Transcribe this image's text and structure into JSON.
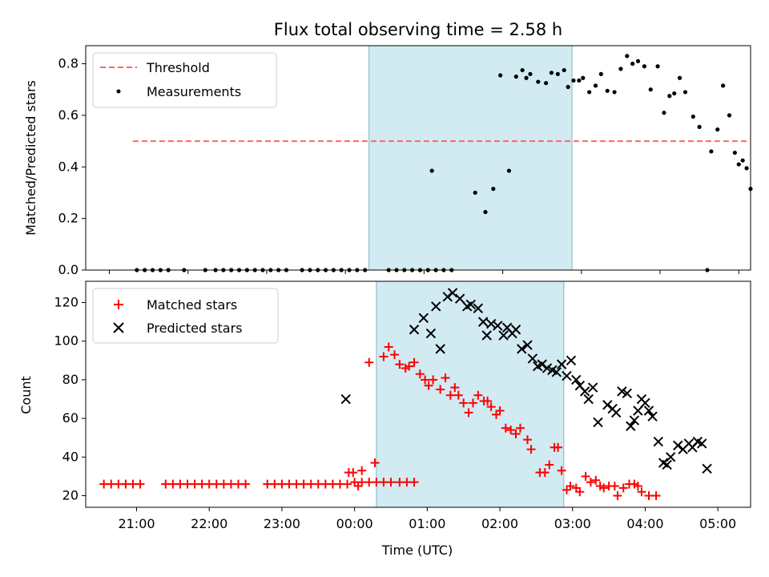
{
  "chart_data": [
    {
      "type": "scatter",
      "title": "Flux total observing time = 2.58 h",
      "ylabel": "Matched/Predicted stars",
      "xlabel": "",
      "xlim": [
        -3.3,
        5.15
      ],
      "ylim": [
        0,
        0.87
      ],
      "yticks": [
        0.0,
        0.2,
        0.4,
        0.6,
        0.8
      ],
      "ytick_labels": [
        "0.0",
        "0.2",
        "0.4",
        "0.6",
        "0.8"
      ],
      "xticks": [
        -3,
        -2,
        -1,
        0,
        1,
        2,
        3,
        4,
        5
      ],
      "xtick_labels": [],
      "highlight": {
        "start": 0.3,
        "end": 2.88,
        "color": "#add8e6"
      },
      "legend": {
        "position": "top-left",
        "entries": [
          "Threshold",
          "Measurements"
        ]
      },
      "threshold": {
        "name": "Threshold",
        "value": 0.5,
        "x_start": -2.7,
        "x_end": 5.1,
        "color": "#ff6666"
      },
      "series": [
        {
          "name": "Measurements",
          "marker": "dot",
          "color": "#000000",
          "points": [
            [
              -2.65,
              0
            ],
            [
              -2.55,
              0
            ],
            [
              -2.45,
              0
            ],
            [
              -2.35,
              0
            ],
            [
              -2.25,
              0
            ],
            [
              -2.05,
              0
            ],
            [
              -1.78,
              0
            ],
            [
              -1.65,
              0
            ],
            [
              -1.55,
              0
            ],
            [
              -1.45,
              0
            ],
            [
              -1.35,
              0
            ],
            [
              -1.25,
              0
            ],
            [
              -1.15,
              0
            ],
            [
              -1.05,
              0
            ],
            [
              -0.95,
              0
            ],
            [
              -0.85,
              0
            ],
            [
              -0.75,
              0
            ],
            [
              -0.55,
              0
            ],
            [
              -0.45,
              0
            ],
            [
              -0.35,
              0
            ],
            [
              -0.25,
              0
            ],
            [
              -0.15,
              0
            ],
            [
              -0.05,
              0
            ],
            [
              0.05,
              0
            ],
            [
              0.15,
              0
            ],
            [
              0.25,
              0
            ],
            [
              0.55,
              0
            ],
            [
              0.65,
              0
            ],
            [
              0.75,
              0
            ],
            [
              0.85,
              0
            ],
            [
              0.95,
              0
            ],
            [
              1.05,
              0
            ],
            [
              1.15,
              0
            ],
            [
              1.25,
              0
            ],
            [
              1.35,
              0
            ],
            [
              1.1,
              0.385
            ],
            [
              1.65,
              0.3
            ],
            [
              1.78,
              0.225
            ],
            [
              1.88,
              0.315
            ],
            [
              1.97,
              0.755
            ],
            [
              2.08,
              0.385
            ],
            [
              2.17,
              0.75
            ],
            [
              2.25,
              0.775
            ],
            [
              2.3,
              0.745
            ],
            [
              2.35,
              0.76
            ],
            [
              2.45,
              0.73
            ],
            [
              2.55,
              0.725
            ],
            [
              2.62,
              0.765
            ],
            [
              2.7,
              0.76
            ],
            [
              2.78,
              0.775
            ],
            [
              2.83,
              0.71
            ],
            [
              2.9,
              0.735
            ],
            [
              2.97,
              0.735
            ],
            [
              3.02,
              0.745
            ],
            [
              3.1,
              0.69
            ],
            [
              3.18,
              0.715
            ],
            [
              3.25,
              0.76
            ],
            [
              3.33,
              0.695
            ],
            [
              3.42,
              0.69
            ],
            [
              3.5,
              0.78
            ],
            [
              3.58,
              0.83
            ],
            [
              3.65,
              0.8
            ],
            [
              3.72,
              0.81
            ],
            [
              3.8,
              0.79
            ],
            [
              3.88,
              0.7
            ],
            [
              3.97,
              0.79
            ],
            [
              4.05,
              0.61
            ],
            [
              4.12,
              0.675
            ],
            [
              4.18,
              0.685
            ],
            [
              4.25,
              0.745
            ],
            [
              4.32,
              0.69
            ],
            [
              4.42,
              0.595
            ],
            [
              4.5,
              0.555
            ],
            [
              4.6,
              0.0
            ],
            [
              4.65,
              0.46
            ],
            [
              4.73,
              0.545
            ],
            [
              4.8,
              0.715
            ],
            [
              4.88,
              0.6
            ],
            [
              4.95,
              0.455
            ],
            [
              5.0,
              0.41
            ],
            [
              5.05,
              0.425
            ],
            [
              5.1,
              0.395
            ],
            [
              5.15,
              0.315
            ]
          ]
        }
      ]
    },
    {
      "type": "scatter",
      "title": "",
      "xlabel": "Time (UTC)",
      "ylabel": "Count",
      "xlim": [
        -3.7,
        5.45
      ],
      "ylim": [
        14,
        131
      ],
      "yticks": [
        20,
        40,
        60,
        80,
        100,
        120
      ],
      "ytick_labels": [
        "20",
        "40",
        "60",
        "80",
        "100",
        "120"
      ],
      "xticks": [
        -3,
        -2,
        -1,
        0,
        1,
        2,
        3,
        4,
        5
      ],
      "xtick_labels": [
        "21:00",
        "22:00",
        "23:00",
        "00:00",
        "01:00",
        "02:00",
        "03:00",
        "04:00",
        "05:00"
      ],
      "highlight": {
        "start": 0.3,
        "end": 2.88,
        "color": "#add8e6"
      },
      "legend": {
        "position": "top-left",
        "entries": [
          "Matched stars",
          "Predicted stars"
        ]
      },
      "series": [
        {
          "name": "Matched stars",
          "marker": "plus",
          "color": "#ff0000",
          "points": [
            [
              -3.45,
              26
            ],
            [
              -3.35,
              26
            ],
            [
              -3.25,
              26
            ],
            [
              -3.15,
              26
            ],
            [
              -3.05,
              26
            ],
            [
              -2.95,
              26
            ],
            [
              -2.6,
              26
            ],
            [
              -2.5,
              26
            ],
            [
              -2.4,
              26
            ],
            [
              -2.3,
              26
            ],
            [
              -2.2,
              26
            ],
            [
              -2.1,
              26
            ],
            [
              -2.0,
              26
            ],
            [
              -1.9,
              26
            ],
            [
              -1.8,
              26
            ],
            [
              -1.7,
              26
            ],
            [
              -1.6,
              26
            ],
            [
              -1.5,
              26
            ],
            [
              -1.2,
              26
            ],
            [
              -1.1,
              26
            ],
            [
              -1.0,
              26
            ],
            [
              -0.9,
              26
            ],
            [
              -0.8,
              26
            ],
            [
              -0.7,
              26
            ],
            [
              -0.6,
              26
            ],
            [
              -0.5,
              26
            ],
            [
              -0.4,
              26
            ],
            [
              -0.3,
              26
            ],
            [
              -0.2,
              26
            ],
            [
              -0.1,
              26
            ],
            [
              0.0,
              27
            ],
            [
              0.1,
              27
            ],
            [
              0.2,
              27
            ],
            [
              0.3,
              27
            ],
            [
              0.4,
              27
            ],
            [
              0.5,
              27
            ],
            [
              0.62,
              27
            ],
            [
              0.72,
              27
            ],
            [
              0.82,
              27
            ],
            [
              -0.08,
              32
            ],
            [
              -0.02,
              32
            ],
            [
              0.05,
              25
            ],
            [
              0.1,
              33
            ],
            [
              0.2,
              89
            ],
            [
              0.28,
              37
            ],
            [
              0.4,
              92
            ],
            [
              0.47,
              97
            ],
            [
              0.55,
              93
            ],
            [
              0.62,
              88
            ],
            [
              0.7,
              86
            ],
            [
              0.75,
              87
            ],
            [
              0.82,
              89
            ],
            [
              0.9,
              83
            ],
            [
              0.97,
              80
            ],
            [
              1.02,
              77
            ],
            [
              1.08,
              80
            ],
            [
              1.18,
              75
            ],
            [
              1.25,
              81
            ],
            [
              1.32,
              72
            ],
            [
              1.38,
              76
            ],
            [
              1.43,
              72
            ],
            [
              1.5,
              68
            ],
            [
              1.57,
              63
            ],
            [
              1.63,
              68
            ],
            [
              1.7,
              72
            ],
            [
              1.78,
              69
            ],
            [
              1.83,
              69
            ],
            [
              1.88,
              66
            ],
            [
              1.95,
              62
            ],
            [
              2.0,
              64
            ],
            [
              2.08,
              55
            ],
            [
              2.15,
              54
            ],
            [
              2.22,
              52
            ],
            [
              2.28,
              55
            ],
            [
              2.38,
              49
            ],
            [
              2.43,
              44
            ],
            [
              2.55,
              32
            ],
            [
              2.62,
              32
            ],
            [
              2.68,
              36
            ],
            [
              2.75,
              45
            ],
            [
              2.8,
              45
            ],
            [
              2.85,
              33
            ],
            [
              2.92,
              23
            ],
            [
              2.97,
              25
            ],
            [
              3.05,
              24
            ],
            [
              3.1,
              22
            ],
            [
              3.18,
              30
            ],
            [
              3.25,
              27
            ],
            [
              3.32,
              28
            ],
            [
              3.38,
              25
            ],
            [
              3.43,
              24
            ],
            [
              3.5,
              25
            ],
            [
              3.58,
              25
            ],
            [
              3.62,
              20
            ],
            [
              3.7,
              24
            ],
            [
              3.78,
              26
            ],
            [
              3.85,
              26
            ],
            [
              3.9,
              25
            ],
            [
              3.95,
              22
            ],
            [
              4.05,
              20
            ],
            [
              4.15,
              20
            ]
          ]
        },
        {
          "name": "Predicted stars",
          "marker": "x",
          "color": "#000000",
          "points": [
            [
              -0.12,
              70
            ],
            [
              0.82,
              106
            ],
            [
              0.95,
              112
            ],
            [
              1.05,
              104
            ],
            [
              1.12,
              118
            ],
            [
              1.18,
              96
            ],
            [
              1.28,
              123
            ],
            [
              1.35,
              125
            ],
            [
              1.45,
              122
            ],
            [
              1.55,
              118
            ],
            [
              1.6,
              119
            ],
            [
              1.7,
              117
            ],
            [
              1.77,
              110
            ],
            [
              1.82,
              103
            ],
            [
              1.88,
              109
            ],
            [
              1.97,
              108
            ],
            [
              2.05,
              103
            ],
            [
              2.1,
              107
            ],
            [
              2.17,
              104
            ],
            [
              2.22,
              106
            ],
            [
              2.3,
              96
            ],
            [
              2.38,
              98
            ],
            [
              2.45,
              91
            ],
            [
              2.52,
              87
            ],
            [
              2.58,
              88
            ],
            [
              2.65,
              86
            ],
            [
              2.72,
              85
            ],
            [
              2.78,
              84
            ],
            [
              2.85,
              88
            ],
            [
              2.92,
              82
            ],
            [
              2.98,
              90
            ],
            [
              3.05,
              80
            ],
            [
              3.1,
              77
            ],
            [
              3.17,
              74
            ],
            [
              3.22,
              70
            ],
            [
              3.28,
              76
            ],
            [
              3.35,
              58
            ],
            [
              3.48,
              67
            ],
            [
              3.55,
              65
            ],
            [
              3.6,
              63
            ],
            [
              3.68,
              74
            ],
            [
              3.75,
              73
            ],
            [
              3.8,
              56
            ],
            [
              3.85,
              59
            ],
            [
              3.9,
              64
            ],
            [
              3.95,
              70
            ],
            [
              4.0,
              68
            ],
            [
              4.05,
              64
            ],
            [
              4.1,
              61
            ],
            [
              4.18,
              48
            ],
            [
              4.25,
              37
            ],
            [
              4.3,
              36
            ],
            [
              4.35,
              40
            ],
            [
              4.45,
              46
            ],
            [
              4.52,
              44
            ],
            [
              4.6,
              47
            ],
            [
              4.65,
              45
            ],
            [
              4.72,
              48
            ],
            [
              4.78,
              47
            ],
            [
              4.85,
              34
            ]
          ]
        }
      ]
    }
  ]
}
